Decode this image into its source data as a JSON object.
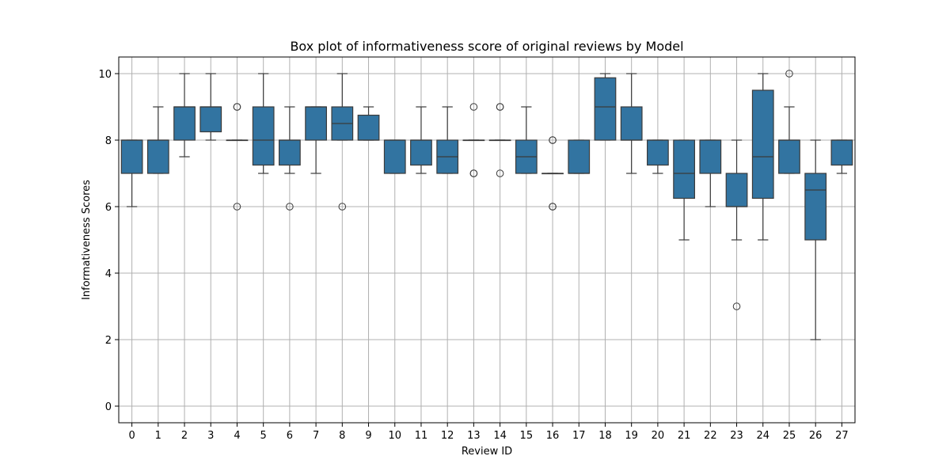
{
  "chart_data": {
    "type": "box",
    "title": "Box plot of informativeness score of original reviews by Model",
    "xlabel": "Review ID",
    "ylabel": "Informativeness Scores",
    "ylim": [
      -0.5,
      10.5
    ],
    "yticks": [
      0,
      2,
      4,
      6,
      8,
      10
    ],
    "grid": true,
    "box_color": "#3274a1",
    "edge_color": "#3b3b3b",
    "grid_color": "#b0b0b0",
    "categories": [
      "0",
      "1",
      "2",
      "3",
      "4",
      "5",
      "6",
      "7",
      "8",
      "9",
      "10",
      "11",
      "12",
      "13",
      "14",
      "15",
      "16",
      "17",
      "18",
      "19",
      "20",
      "21",
      "22",
      "23",
      "24",
      "25",
      "26",
      "27"
    ],
    "boxes": [
      {
        "id": "0",
        "whisker_low": 6,
        "q1": 7,
        "median": 8,
        "q3": 8,
        "whisker_high": 8,
        "outliers": []
      },
      {
        "id": "1",
        "whisker_low": 7,
        "q1": 7,
        "median": 8,
        "q3": 8,
        "whisker_high": 9,
        "outliers": []
      },
      {
        "id": "2",
        "whisker_low": 7.5,
        "q1": 8,
        "median": 9,
        "q3": 9,
        "whisker_high": 10,
        "outliers": []
      },
      {
        "id": "3",
        "whisker_low": 8,
        "q1": 8.25,
        "median": 9,
        "q3": 9,
        "whisker_high": 10,
        "outliers": []
      },
      {
        "id": "4",
        "whisker_low": 8,
        "q1": 8,
        "median": 8,
        "q3": 8,
        "whisker_high": 8,
        "outliers": [
          9,
          9,
          6
        ]
      },
      {
        "id": "5",
        "whisker_low": 7,
        "q1": 7.25,
        "median": 8,
        "q3": 9,
        "whisker_high": 10,
        "outliers": []
      },
      {
        "id": "6",
        "whisker_low": 7,
        "q1": 7.25,
        "median": 8,
        "q3": 8,
        "whisker_high": 9,
        "outliers": [
          6
        ]
      },
      {
        "id": "7",
        "whisker_low": 7,
        "q1": 8,
        "median": 9,
        "q3": 9,
        "whisker_high": 9,
        "outliers": []
      },
      {
        "id": "8",
        "whisker_low": 8,
        "q1": 8,
        "median": 8.5,
        "q3": 9,
        "whisker_high": 10,
        "outliers": [
          6
        ]
      },
      {
        "id": "9",
        "whisker_low": 8,
        "q1": 8,
        "median": 8,
        "q3": 8.75,
        "whisker_high": 9,
        "outliers": []
      },
      {
        "id": "10",
        "whisker_low": 7,
        "q1": 7,
        "median": 8,
        "q3": 8,
        "whisker_high": 8,
        "outliers": []
      },
      {
        "id": "11",
        "whisker_low": 7,
        "q1": 7.25,
        "median": 8,
        "q3": 8,
        "whisker_high": 9,
        "outliers": []
      },
      {
        "id": "12",
        "whisker_low": 7,
        "q1": 7,
        "median": 7.5,
        "q3": 8,
        "whisker_high": 9,
        "outliers": []
      },
      {
        "id": "13",
        "whisker_low": 8,
        "q1": 8,
        "median": 8,
        "q3": 8,
        "whisker_high": 8,
        "outliers": [
          9,
          7,
          7
        ]
      },
      {
        "id": "14",
        "whisker_low": 8,
        "q1": 8,
        "median": 8,
        "q3": 8,
        "whisker_high": 8,
        "outliers": [
          9,
          9,
          7
        ]
      },
      {
        "id": "15",
        "whisker_low": 7,
        "q1": 7,
        "median": 7.5,
        "q3": 8,
        "whisker_high": 9,
        "outliers": []
      },
      {
        "id": "16",
        "whisker_low": 7,
        "q1": 7,
        "median": 7,
        "q3": 7,
        "whisker_high": 7,
        "outliers": [
          8,
          8,
          6,
          6
        ]
      },
      {
        "id": "17",
        "whisker_low": 7,
        "q1": 7,
        "median": 7,
        "q3": 8,
        "whisker_high": 8,
        "outliers": []
      },
      {
        "id": "18",
        "whisker_low": 8,
        "q1": 8,
        "median": 9,
        "q3": 9.875,
        "whisker_high": 10,
        "outliers": []
      },
      {
        "id": "19",
        "whisker_low": 7,
        "q1": 8,
        "median": 8,
        "q3": 9,
        "whisker_high": 10,
        "outliers": []
      },
      {
        "id": "20",
        "whisker_low": 7,
        "q1": 7.25,
        "median": 8,
        "q3": 8,
        "whisker_high": 8,
        "outliers": []
      },
      {
        "id": "21",
        "whisker_low": 5,
        "q1": 6.25,
        "median": 7,
        "q3": 8,
        "whisker_high": 8,
        "outliers": []
      },
      {
        "id": "22",
        "whisker_low": 6,
        "q1": 7,
        "median": 8,
        "q3": 8,
        "whisker_high": 8,
        "outliers": []
      },
      {
        "id": "23",
        "whisker_low": 5,
        "q1": 6,
        "median": 6,
        "q3": 7,
        "whisker_high": 8,
        "outliers": [
          3
        ]
      },
      {
        "id": "24",
        "whisker_low": 5,
        "q1": 6.25,
        "median": 7.5,
        "q3": 9.5,
        "whisker_high": 10,
        "outliers": []
      },
      {
        "id": "25",
        "whisker_low": 7,
        "q1": 7,
        "median": 8,
        "q3": 8,
        "whisker_high": 9,
        "outliers": [
          10
        ]
      },
      {
        "id": "26",
        "whisker_low": 2,
        "q1": 5,
        "median": 6.5,
        "q3": 7,
        "whisker_high": 8,
        "outliers": []
      },
      {
        "id": "27",
        "whisker_low": 7,
        "q1": 7.25,
        "median": 8,
        "q3": 8,
        "whisker_high": 8,
        "outliers": []
      }
    ]
  }
}
